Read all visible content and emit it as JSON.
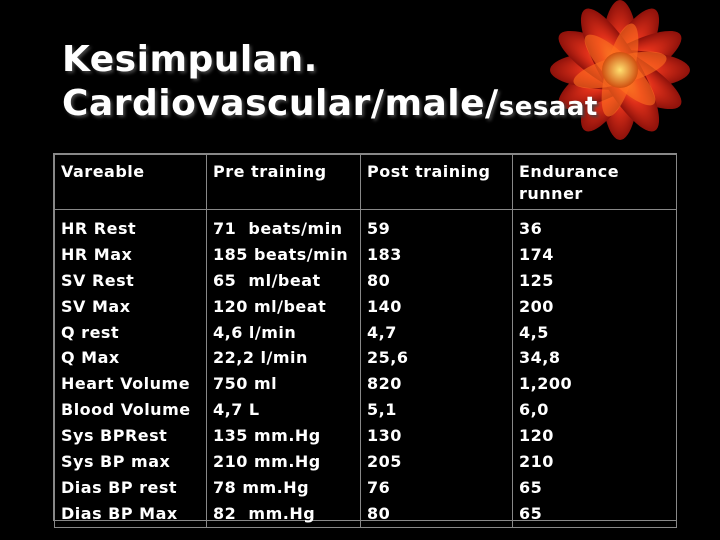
{
  "slide": {
    "title_line1": "Kesimpulan.",
    "title_line2": "Cardiovascular/male/",
    "title_suffix": "sesaat"
  },
  "table": {
    "headers": [
      "Vareable",
      "Pre training",
      "Post training",
      "Endurance runner"
    ],
    "variables": [
      "HR Rest",
      "HR Max",
      "SV Rest",
      "SV Max",
      "Q rest",
      "Q Max",
      "Heart Volume",
      "Blood Volume",
      "Sys BPRest",
      "Sys BP max",
      "Dias BP rest",
      "Dias BP Max"
    ],
    "pre_training": [
      "71  beats/min",
      "185 beats/min",
      "65  ml/beat",
      "120 ml/beat",
      "4,6 l/min",
      "22,2 l/min",
      "750 ml",
      "4,7 L",
      "135 mm.Hg",
      "210 mm.Hg",
      "78 mm.Hg",
      "82  mm.Hg"
    ],
    "post_training": [
      "59",
      "183",
      "80",
      "140",
      "4,7",
      "25,6",
      "820",
      "5,1",
      "130",
      "205",
      "76",
      "80"
    ],
    "endurance_runner": [
      "36",
      "174",
      "125",
      "200",
      "4,5",
      "34,8",
      "1,200",
      "6,0",
      "120",
      "210",
      "65",
      "65"
    ]
  },
  "colors": {
    "background": "#000000",
    "text": "#ffffff",
    "flower_red": "#c81010",
    "flower_orange": "#ff8a1a"
  },
  "decorations": {
    "corner_image": "red-flower-icon"
  }
}
